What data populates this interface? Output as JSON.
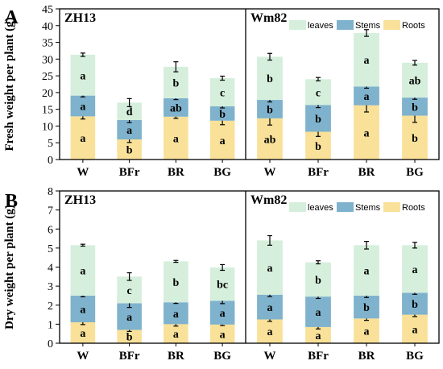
{
  "colors": {
    "roots": "#f9e19a",
    "stems": "#7fb2cc",
    "leaves": "#d5efdc",
    "axis": "#000000"
  },
  "chart_data": [
    {
      "type": "bar",
      "stacked": true,
      "panel_letter": "A",
      "ylabel": "Fresh weight per plant (g)",
      "ylim": [
        0,
        45
      ],
      "yticks": [
        0,
        5,
        10,
        15,
        20,
        25,
        30,
        35,
        40,
        45
      ],
      "legend_position": "top-right of right subpanel",
      "series_names": [
        "leaves",
        "Stems",
        "Roots"
      ],
      "subpanels": [
        {
          "name": "ZH13",
          "categories": [
            "W",
            "BFr",
            "BR",
            "BG"
          ],
          "series": [
            {
              "name": "Roots",
              "values": [
                12.9,
                6.0,
                12.8,
                11.6
              ],
              "errors": [
                0.8,
                0.9,
                0.5,
                1.2
              ],
              "letters": [
                "a",
                "b",
                "a",
                "a"
              ]
            },
            {
              "name": "Stems",
              "values": [
                6.2,
                5.8,
                5.5,
                4.3
              ],
              "errors": [
                0.4,
                0.8,
                0.4,
                0.5
              ],
              "letters": [
                "a",
                "a",
                "ab",
                "b"
              ]
            },
            {
              "name": "leaves",
              "values": [
                12.2,
                5.2,
                9.4,
                8.4
              ],
              "errors": [
                0.5,
                1.2,
                1.5,
                0.6
              ],
              "letters": [
                "a",
                "d",
                "b",
                "c"
              ]
            }
          ]
        },
        {
          "name": "Wm82",
          "categories": [
            "W",
            "BFr",
            "BR",
            "BG"
          ],
          "show_legend": true,
          "series": [
            {
              "name": "Roots",
              "values": [
                12.3,
                8.3,
                16.2,
                13.1
              ],
              "errors": [
                2.0,
                1.4,
                2.0,
                2.0
              ],
              "letters": [
                "ab",
                "b",
                "a",
                "b"
              ]
            },
            {
              "name": "Stems",
              "values": [
                5.5,
                8.0,
                5.6,
                5.4
              ],
              "errors": [
                0.6,
                0.8,
                0.5,
                0.5
              ],
              "letters": [
                "b",
                "b",
                "a",
                "b"
              ]
            },
            {
              "name": "leaves",
              "values": [
                12.9,
                7.7,
                16.0,
                10.4
              ],
              "errors": [
                1.0,
                0.5,
                1.0,
                0.7
              ],
              "letters": [
                "b",
                "c",
                "a",
                "ab"
              ]
            }
          ]
        }
      ]
    },
    {
      "type": "bar",
      "stacked": true,
      "panel_letter": "B",
      "ylabel": "Dry weight per plant (g)",
      "ylim": [
        0,
        8
      ],
      "yticks": [
        0,
        1,
        2,
        3,
        4,
        5,
        6,
        7,
        8
      ],
      "legend_position": "top-right of right subpanel",
      "series_names": [
        "leaves",
        "Stems",
        "Roots"
      ],
      "subpanels": [
        {
          "name": "ZH13",
          "categories": [
            "W",
            "BFr",
            "BR",
            "BG"
          ],
          "series": [
            {
              "name": "Roots",
              "values": [
                1.1,
                0.7,
                1.0,
                0.98
              ],
              "errors": [
                0.12,
                0.08,
                0.1,
                0.05
              ],
              "letters": [
                "a",
                "b",
                "a",
                "a"
              ]
            },
            {
              "name": "Stems",
              "values": [
                1.4,
                1.4,
                1.15,
                1.25
              ],
              "errors": [
                0.06,
                0.22,
                0.06,
                0.15
              ],
              "letters": [
                "a",
                "a",
                "a",
                "a"
              ]
            },
            {
              "name": "leaves",
              "values": [
                2.65,
                1.4,
                2.15,
                1.75
              ],
              "errors": [
                0.05,
                0.2,
                0.05,
                0.15
              ],
              "letters": [
                "a",
                "c",
                "b",
                "bc"
              ]
            }
          ]
        },
        {
          "name": "Wm82",
          "categories": [
            "W",
            "BFr",
            "BR",
            "BG"
          ],
          "show_legend": true,
          "series": [
            {
              "name": "Roots",
              "values": [
                1.25,
                0.85,
                1.3,
                1.5
              ],
              "errors": [
                0.1,
                0.1,
                0.1,
                0.1
              ],
              "letters": [
                "a",
                "a",
                "a",
                "a"
              ]
            },
            {
              "name": "Stems",
              "values": [
                1.3,
                1.6,
                1.2,
                1.15
              ],
              "errors": [
                0.1,
                0.1,
                0.1,
                0.08
              ],
              "letters": [
                "a",
                "a",
                "b",
                "b"
              ]
            },
            {
              "name": "leaves",
              "values": [
                2.85,
                1.8,
                2.65,
                2.5
              ],
              "errors": [
                0.25,
                0.08,
                0.2,
                0.15
              ],
              "letters": [
                "a",
                "b",
                "a",
                "a"
              ]
            }
          ]
        }
      ]
    }
  ]
}
